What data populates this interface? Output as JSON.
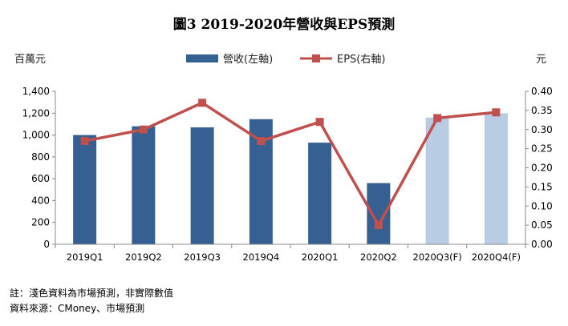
{
  "title": "圖3  2019-2020年營收與EPS預測",
  "left_axis_unit": "百萬元",
  "right_axis_unit": "元",
  "legend": {
    "revenue": "營收(左軸)",
    "eps": "EPS(右軸)"
  },
  "colors": {
    "actual_bar": "#376092",
    "forecast_bar": "#b8cce4",
    "eps_line": "#c0504d"
  },
  "chart_data": {
    "type": "bar",
    "title": "圖3  2019-2020年營收與EPS預測",
    "categories": [
      "2019Q1",
      "2019Q2",
      "2019Q3",
      "2019Q4",
      "2020Q1",
      "2020Q2",
      "2020Q3(F)",
      "2020Q4(F)"
    ],
    "series": [
      {
        "name": "營收(左軸)",
        "type": "bar",
        "axis": "left",
        "values": [
          1000,
          1080,
          1070,
          1145,
          930,
          560,
          1160,
          1200
        ],
        "forecast": [
          false,
          false,
          false,
          false,
          false,
          false,
          true,
          true
        ]
      },
      {
        "name": "EPS(右軸)",
        "type": "line",
        "axis": "right",
        "values": [
          0.27,
          0.3,
          0.37,
          0.27,
          0.32,
          0.05,
          0.33,
          0.345
        ]
      }
    ],
    "y_left": {
      "label": "百萬元",
      "ylim": [
        0,
        1400
      ],
      "ticks": [
        "0",
        "200",
        "400",
        "600",
        "800",
        "1,000",
        "1,200",
        "1,400"
      ]
    },
    "y_right": {
      "label": "元",
      "ylim": [
        0,
        0.4
      ],
      "ticks": [
        "0.00",
        "0.05",
        "0.10",
        "0.15",
        "0.20",
        "0.25",
        "0.30",
        "0.35",
        "0.40"
      ]
    },
    "grid": false,
    "legend_position": "top-center"
  },
  "notes": {
    "line1": "註：淺色資料為市場預測，非實際數值",
    "line2": "資料來源：CMoney、市場預測"
  }
}
